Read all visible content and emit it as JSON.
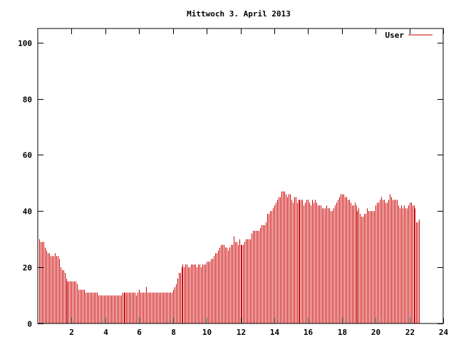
{
  "colors": {
    "series": "#cc0000",
    "frame": "#000000",
    "background": "#ffffff"
  },
  "chart_data": {
    "type": "bar",
    "title": "Mittwoch 3. April 2013",
    "xlabel": "",
    "ylabel": "",
    "xlim": [
      0,
      24
    ],
    "ylim": [
      0,
      105
    ],
    "xticks": [
      2,
      4,
      6,
      8,
      10,
      12,
      14,
      16,
      18,
      20,
      22,
      24
    ],
    "yticks": [
      0,
      20,
      40,
      60,
      80,
      100
    ],
    "grid": false,
    "legend_position": "top-right",
    "bar_interval_minutes": 5,
    "series": [
      {
        "name": "User",
        "color": "#cc0000",
        "values": [
          30,
          29,
          29,
          29,
          27,
          26,
          25,
          25,
          24,
          24,
          24,
          25,
          24,
          24,
          23,
          20,
          19,
          19,
          18,
          16,
          15,
          15,
          15,
          15,
          15,
          15,
          15,
          14,
          12,
          12,
          12,
          12,
          12,
          11,
          11,
          11,
          11,
          11,
          11,
          11,
          11,
          11,
          10,
          10,
          10,
          10,
          10,
          10,
          10,
          10,
          10,
          10,
          10,
          10,
          10,
          10,
          10,
          10,
          10,
          11,
          11,
          11,
          11,
          11,
          11,
          11,
          11,
          11,
          11,
          10,
          11,
          12,
          11,
          11,
          11,
          11,
          13,
          11,
          11,
          11,
          11,
          11,
          11,
          11,
          11,
          11,
          11,
          11,
          11,
          11,
          11,
          11,
          11,
          11,
          11,
          12,
          13,
          14,
          16,
          18,
          18,
          20,
          21,
          20,
          21,
          21,
          20,
          20,
          21,
          21,
          21,
          21,
          20,
          21,
          21,
          20,
          21,
          21,
          21,
          22,
          22,
          22,
          23,
          23,
          24,
          25,
          25,
          26,
          27,
          28,
          28,
          28,
          27,
          27,
          26,
          27,
          28,
          28,
          31,
          29,
          29,
          28,
          30,
          28,
          28,
          28,
          29,
          30,
          30,
          30,
          30,
          32,
          33,
          33,
          33,
          33,
          33,
          34,
          35,
          35,
          35,
          36,
          39,
          39,
          40,
          40,
          41,
          42,
          43,
          44,
          45,
          45,
          47,
          47,
          47,
          46,
          45,
          46,
          46,
          44,
          43,
          45,
          45,
          43,
          44,
          44,
          44,
          44,
          42,
          43,
          44,
          44,
          43,
          42,
          44,
          43,
          44,
          43,
          42,
          42,
          42,
          41,
          41,
          41,
          42,
          41,
          41,
          40,
          40,
          41,
          42,
          43,
          44,
          45,
          46,
          46,
          46,
          45,
          45,
          44,
          44,
          43,
          42,
          42,
          43,
          42,
          40,
          41,
          39,
          38,
          38,
          39,
          39,
          41,
          40,
          40,
          40,
          40,
          40,
          42,
          43,
          43,
          44,
          45,
          44,
          44,
          43,
          43,
          44,
          46,
          45,
          44,
          44,
          44,
          44,
          42,
          41,
          42,
          41,
          42,
          41,
          41,
          42,
          43,
          43,
          42,
          42,
          41,
          36,
          36,
          37
        ]
      }
    ]
  }
}
